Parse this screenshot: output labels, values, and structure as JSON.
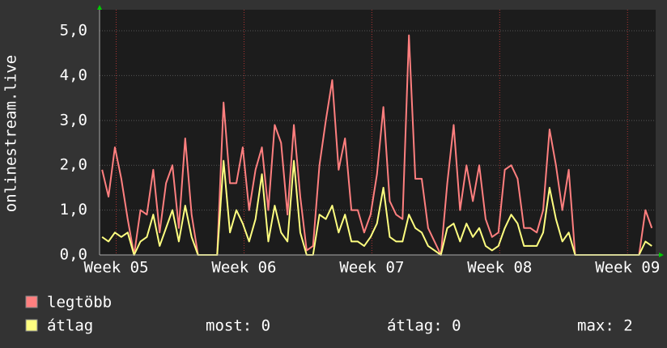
{
  "chart_data": {
    "type": "line",
    "y_label": "onlinestream.live",
    "x": [
      4.89,
      4.94,
      4.99,
      5.04,
      5.09,
      5.14,
      5.19,
      5.24,
      5.29,
      5.34,
      5.39,
      5.44,
      5.49,
      5.54,
      5.59,
      5.64,
      5.69,
      5.74,
      5.79,
      5.84,
      5.89,
      5.94,
      5.99,
      6.04,
      6.09,
      6.14,
      6.19,
      6.24,
      6.29,
      6.34,
      6.39,
      6.44,
      6.49,
      6.54,
      6.59,
      6.64,
      6.69,
      6.74,
      6.79,
      6.84,
      6.89,
      6.94,
      6.99,
      7.04,
      7.09,
      7.14,
      7.19,
      7.24,
      7.29,
      7.34,
      7.39,
      7.44,
      7.49,
      7.54,
      7.59,
      7.64,
      7.69,
      7.74,
      7.79,
      7.84,
      7.89,
      7.94,
      7.99,
      8.04,
      8.09,
      8.14,
      8.19,
      8.24,
      8.29,
      8.34,
      8.39,
      8.44,
      8.49,
      8.54,
      8.59,
      8.64,
      8.69,
      8.74,
      8.79,
      8.84,
      8.89,
      8.94,
      8.99,
      9.04,
      9.09,
      9.14,
      9.19
    ],
    "series": [
      {
        "name": "legtöbb",
        "color": "#ff7f7f",
        "values": [
          1.9,
          1.3,
          2.4,
          1.7,
          0.8,
          0,
          1.0,
          0.9,
          1.9,
          0.5,
          1.6,
          2.0,
          0.6,
          2.6,
          0.9,
          0,
          0,
          0,
          0,
          3.4,
          1.6,
          1.6,
          2.4,
          1.0,
          1.9,
          2.4,
          1.0,
          2.9,
          2.5,
          0.9,
          2.9,
          1.3,
          0.1,
          0.2,
          2.0,
          3.0,
          3.9,
          1.9,
          2.6,
          1.0,
          1.0,
          0.5,
          0.9,
          1.8,
          3.3,
          1.2,
          0.9,
          0.8,
          4.9,
          1.7,
          1.7,
          0.6,
          0.3,
          0,
          1.6,
          2.9,
          1.0,
          2.0,
          1.2,
          2.0,
          0.8,
          0.4,
          0.5,
          1.9,
          2.0,
          1.7,
          0.6,
          0.6,
          0.5,
          1.0,
          2.8,
          2.0,
          1.0,
          1.9,
          0,
          0,
          0,
          0,
          0,
          0,
          0,
          0,
          0,
          0,
          0,
          1.0,
          0.6
        ]
      },
      {
        "name": "átlag",
        "color": "#ffff80",
        "values": [
          0.4,
          0.3,
          0.5,
          0.4,
          0.5,
          0,
          0.3,
          0.4,
          0.9,
          0.2,
          0.6,
          1.0,
          0.3,
          1.1,
          0.4,
          0,
          0,
          0,
          0,
          2.1,
          0.5,
          1.0,
          0.7,
          0.3,
          0.8,
          1.8,
          0.3,
          1.1,
          0.5,
          0.3,
          2.1,
          0.5,
          0,
          0,
          0.9,
          0.8,
          1.1,
          0.5,
          0.9,
          0.3,
          0.3,
          0.2,
          0.4,
          0.7,
          1.5,
          0.4,
          0.3,
          0.3,
          0.9,
          0.6,
          0.5,
          0.2,
          0.1,
          0,
          0.6,
          0.7,
          0.3,
          0.7,
          0.4,
          0.6,
          0.2,
          0.1,
          0.2,
          0.6,
          0.9,
          0.7,
          0.2,
          0.2,
          0.2,
          0.5,
          1.5,
          0.8,
          0.3,
          0.5,
          0,
          0,
          0,
          0,
          0,
          0,
          0,
          0,
          0,
          0,
          0,
          0.3,
          0.2
        ]
      }
    ],
    "stats": [
      "most: 0",
      "átlag: 0",
      "max: 2"
    ],
    "xlim": [
      4.87,
      9.22
    ],
    "xticks": [
      {
        "value": 5,
        "label": "Week 05"
      },
      {
        "value": 6,
        "label": "Week 06"
      },
      {
        "value": 7,
        "label": "Week 07"
      },
      {
        "value": 8,
        "label": "Week 08"
      },
      {
        "value": 9,
        "label": "Week 09"
      }
    ],
    "ylim": [
      0,
      5.47
    ],
    "yticks": [
      {
        "value": 0,
        "label": "0,0"
      },
      {
        "value": 1,
        "label": "1,0"
      },
      {
        "value": 2,
        "label": "2,0"
      },
      {
        "value": 3,
        "label": "3,0"
      },
      {
        "value": 4,
        "label": "4,0"
      },
      {
        "value": 5,
        "label": "5,0"
      }
    ],
    "grid": true
  }
}
